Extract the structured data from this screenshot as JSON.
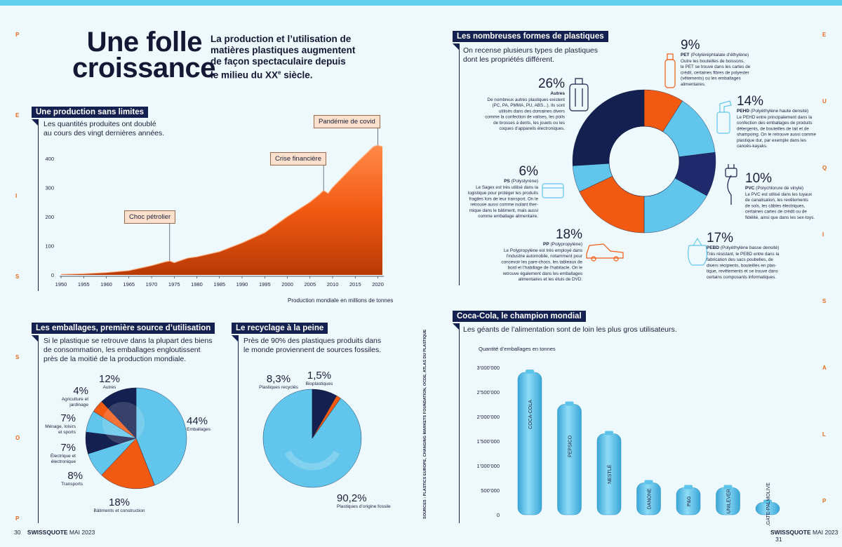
{
  "header": {
    "title_line1": "Une folle",
    "title_line2": "croissance",
    "subtitle_html": [
      "La production et l’utilisation de",
      "matières plastiques augmentent",
      "de façon spectaculaire depuis",
      "le milieu du XX",
      "e",
      " siècle."
    ]
  },
  "side_letters": {
    "left": [
      "P",
      "E",
      "I",
      "S",
      "S",
      "O",
      "P"
    ],
    "right": [
      "E",
      "U",
      "Q",
      "I",
      "S",
      "A",
      "L",
      "P"
    ]
  },
  "production": {
    "heading": "Une production sans limites",
    "intro": [
      "Les quantités produites ont doublé",
      "au cours des vingt dernières années."
    ],
    "caption": "Production mondiale en millions de tonnes",
    "callouts": {
      "oil": "Choc pétrolier",
      "finance": "Crise financière",
      "covid": "Pandémie de covid"
    }
  },
  "emballages": {
    "heading": "Les emballages, première source d’utilisation",
    "intro": [
      "Si le plastique se retrouve dans la plupart des biens",
      "de consommation, les emballages engloutissent",
      "près de la moitié de la production mondiale."
    ]
  },
  "recyclage": {
    "heading": "Le recyclage à la peine",
    "intro": [
      "Près de 90% des plastiques produits dans",
      "le monde proviennent de sources fossiles."
    ]
  },
  "formes": {
    "heading": "Les nombreuses formes de plastiques",
    "intro": [
      "On recense plusieurs types de plastiques",
      "dont les propriétés différent."
    ]
  },
  "coca": {
    "heading": "Coca-Cola, le champion mondial",
    "intro": "Les géants de l’alimentation sont de loin les plus gros utilisateurs.",
    "sources": "SOURCES : PLASTICS EUROPE, CHANGING MARKETS FOUNDATION, OCDE, ATLAS DU PLASTIQUE"
  },
  "footer": {
    "left_page": "30",
    "left_mag": "SWISSQUOTE",
    "left_date": "MAI 2023",
    "right_mag": "SWISSQUOTE",
    "right_date": "MAI 2023",
    "right_page": "31"
  },
  "colors": {
    "navy": "#14204f",
    "orange": "#f25a12",
    "lightblue": "#62c6ec",
    "darknavy": "#1e2a6b"
  },
  "chart_data": [
    {
      "type": "area",
      "title": "",
      "xlabel": "Production mondiale en millions de tonnes",
      "ylabel": "",
      "xlim": [
        1950,
        2021
      ],
      "ylim": [
        0,
        450
      ],
      "x_ticks": [
        1950,
        1955,
        1960,
        1965,
        1970,
        1975,
        1980,
        1985,
        1990,
        1995,
        2000,
        2005,
        2010,
        2015,
        2020
      ],
      "y_ticks": [
        0,
        100,
        200,
        300,
        400
      ],
      "x": [
        1950,
        1955,
        1960,
        1965,
        1970,
        1973,
        1974,
        1975,
        1978,
        1980,
        1985,
        1990,
        1995,
        2000,
        2005,
        2007,
        2008,
        2009,
        2010,
        2015,
        2019,
        2020,
        2021
      ],
      "values": [
        2,
        4,
        8,
        15,
        32,
        45,
        48,
        42,
        58,
        62,
        80,
        110,
        145,
        200,
        250,
        275,
        290,
        280,
        300,
        380,
        440,
        445,
        440
      ],
      "annotations": [
        {
          "label": "Choc pétrolier",
          "x": 1974
        },
        {
          "label": "Crise financière",
          "x": 2008
        },
        {
          "label": "Pandémie de covid",
          "x": 2020
        }
      ]
    },
    {
      "type": "pie",
      "title": "",
      "labels": [
        "Emballages",
        "Bâtiments et construction",
        "Transports",
        "Électrique et électronique",
        "Ménage, loisirs et sports",
        "Agriculture et jardinage",
        "Autres"
      ],
      "pct_labels": [
        "44%",
        "18%",
        "8%",
        "7%",
        "7%",
        "4%",
        "12%"
      ],
      "values": [
        44,
        18,
        8,
        7,
        7,
        4,
        12
      ]
    },
    {
      "type": "pie",
      "title": "",
      "labels": [
        "Plastiques d’origine fossile",
        "Plastiques recyclés",
        "Bioplastiques"
      ],
      "pct_labels": [
        "90,2%",
        "8,3%",
        "1,5%"
      ],
      "values": [
        90.2,
        8.3,
        1.5
      ]
    },
    {
      "type": "pie",
      "title": "",
      "labels": [
        "PET",
        "PEHD",
        "PVC",
        "PEBD",
        "PP",
        "PS",
        "Autres"
      ],
      "pct_labels": [
        "9%",
        "14%",
        "10%",
        "17%",
        "18%",
        "6%",
        "26%"
      ],
      "values": [
        9,
        14,
        10,
        17,
        18,
        6,
        26
      ],
      "descriptions": [
        {
          "name": "PET",
          "full": "(Polytéréphtalate d’éthylène)",
          "text": [
            "Outre les bouteilles de boissons,",
            "le PET se trouve dans les cartes de",
            "crédit, certaines fibres de polyester",
            "(vêtements) ou les emballages",
            "alimentaires."
          ]
        },
        {
          "name": "PEHD",
          "full": "(Polyéthylène haute densité)",
          "text": [
            "Le PEHD entre principalement dans la",
            "confection des emballages de produits",
            "détergents, de bouteilles de lait et de",
            "shampoing. On le retrouve aussi comme",
            "plastique dur, par exemple dans les",
            "canoës-kayaks."
          ]
        },
        {
          "name": "PVC",
          "full": "(Polychlorure de vinyle)",
          "text": [
            "Le PVC est utilisé dans les tuyaux",
            "de canalisation, les revêtements",
            "de sols, les câbles électriques,",
            "certaines cartes de crédit ou de",
            "fidélité, ainsi que dans les sex-toys."
          ]
        },
        {
          "name": "PEBD",
          "full": "(Polyéthylène basse densité)",
          "text": [
            "Très résistant, le PEBD entre dans la",
            "fabrication des sacs poubelles, de",
            "divers récipients, bouteilles en plas-",
            "tique, revêtements et se trouve dans",
            "certains composants informatiques."
          ]
        },
        {
          "name": "PP",
          "full": "(Polypropylène)",
          "text": [
            "Le Polypropylène est très employé dans",
            "l’industrie automobile, notamment pour",
            "concevoir les pare-chocs, les tableaux de",
            "bord et l’habillage de l’habitacle. On le",
            "retrouve également dans les emballages",
            "alimentaires et les étuis de DVD."
          ]
        },
        {
          "name": "PS",
          "full": "(Polystyrène)",
          "text": [
            "Le Sagex est très utilisé dans la",
            "logistique pour protéger les produits",
            "fragiles lors de leur transport. On le",
            "retrouve aussi comme isolant ther-",
            "mique dans le bâtiment, mais aussi",
            "comme emballage alimentaire."
          ]
        },
        {
          "name": "Autres",
          "full": "",
          "text": [
            "De nombreux autres plastiques existent",
            "(PC, PA, PMMA, PU, ABS...). Ils sont",
            "utilisés dans des domaines divers",
            "comme la confection de valises, les poils",
            "de brosses à dents, les jouets ou les",
            "coques d’appareils électroniques."
          ]
        }
      ]
    },
    {
      "type": "bar",
      "title": "",
      "ylabel": "Quantité d’emballages en tonnes",
      "ylim": [
        0,
        3000000
      ],
      "y_ticks": [
        0,
        500000,
        1000000,
        1500000,
        2000000,
        2500000,
        3000000
      ],
      "y_tick_labels": [
        "0",
        "500’000",
        "1’000’000",
        "1’500’000",
        "2’000’000",
        "2’500’000",
        "3’000’000"
      ],
      "categories": [
        "COCA-COLA",
        "PEPSICO",
        "NESTLÉ",
        "DANONE",
        "P&G",
        "UNILEVER",
        "COLGATE-PALMOLIVE"
      ],
      "values": [
        2900000,
        2250000,
        1650000,
        650000,
        550000,
        550000,
        250000
      ]
    }
  ]
}
